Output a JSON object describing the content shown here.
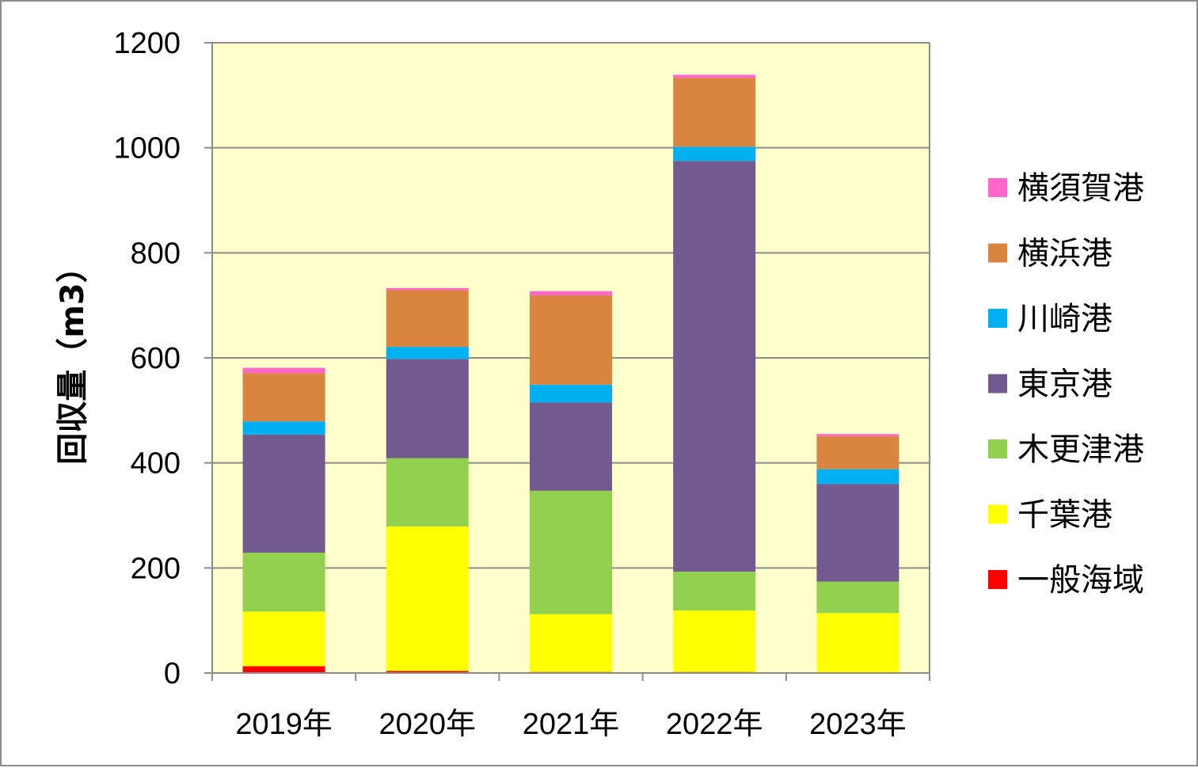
{
  "chart_data": {
    "type": "bar",
    "stacked": true,
    "title": "",
    "xlabel": "",
    "ylabel": "回収量（m3）",
    "categories": [
      "2019年",
      "2020年",
      "2021年",
      "2022年",
      "2023年"
    ],
    "ylim": [
      0,
      1200
    ],
    "yticks": [
      0,
      200,
      400,
      600,
      800,
      1000,
      1200
    ],
    "grid": true,
    "plot_background": "#ffffcc",
    "legend_position": "right",
    "series": [
      {
        "name": "一般海域",
        "color": "#ff0000",
        "values": [
          13,
          4,
          2,
          2,
          1
        ]
      },
      {
        "name": "千葉港",
        "color": "#ffff00",
        "values": [
          104,
          275,
          110,
          117,
          113
        ]
      },
      {
        "name": "木更津港",
        "color": "#92d050",
        "values": [
          112,
          130,
          235,
          74,
          60
        ]
      },
      {
        "name": "東京港",
        "color": "#725a8e",
        "values": [
          225,
          189,
          168,
          782,
          186
        ]
      },
      {
        "name": "川崎港",
        "color": "#00b0f0",
        "values": [
          25,
          23,
          34,
          27,
          28
        ]
      },
      {
        "name": "横浜港",
        "color": "#d9843f",
        "values": [
          92,
          108,
          170,
          131,
          63
        ]
      },
      {
        "name": "横須賀港",
        "color": "#ff66cc",
        "values": [
          10,
          4,
          8,
          6,
          4
        ]
      }
    ]
  }
}
